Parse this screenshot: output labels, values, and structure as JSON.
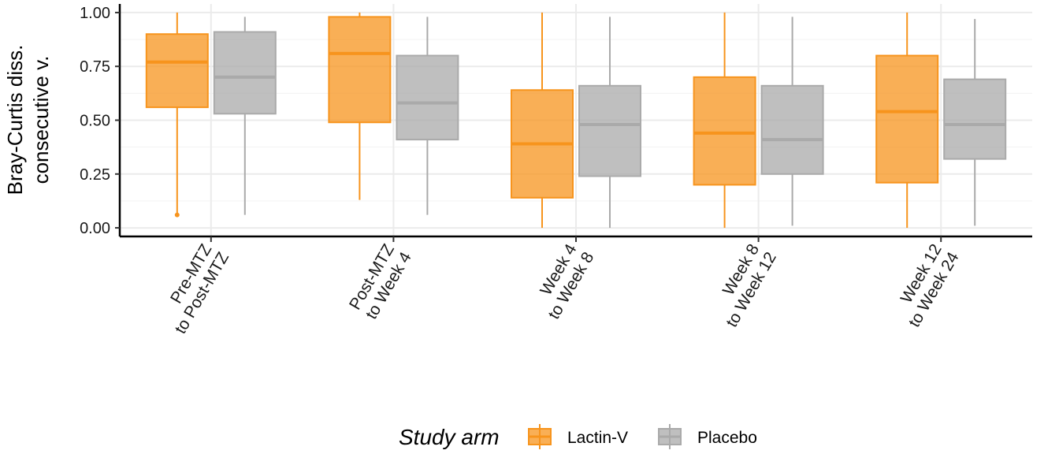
{
  "chart_data": {
    "type": "box",
    "ylabel_lines": [
      "Bray-Curtis diss.",
      "consecutive v."
    ],
    "xlabel": "",
    "ylim": [
      -0.04,
      1.04
    ],
    "y_ticks": [
      "0.00",
      "0.25",
      "0.50",
      "0.75",
      "1.00"
    ],
    "categories": [
      [
        "Pre-MTZ",
        "to Post-MTZ"
      ],
      [
        "Post-MTZ",
        "to Week 4"
      ],
      [
        "Week 4",
        "to Week 8"
      ],
      [
        "Week 8",
        "to Week 12"
      ],
      [
        "Week 12",
        "to Week 24"
      ]
    ],
    "grid": true,
    "legend": {
      "title": "Study arm",
      "position": "bottom"
    },
    "series": [
      {
        "name": "Lactin-V",
        "color": "#F7941D",
        "boxes": [
          {
            "min": 0.07,
            "q1": 0.56,
            "median": 0.77,
            "q3": 0.9,
            "max": 1.0,
            "outliers": [
              0.06
            ]
          },
          {
            "min": 0.13,
            "q1": 0.49,
            "median": 0.81,
            "q3": 0.98,
            "max": 1.0,
            "outliers": []
          },
          {
            "min": 0.0,
            "q1": 0.14,
            "median": 0.39,
            "q3": 0.64,
            "max": 1.0,
            "outliers": []
          },
          {
            "min": 0.0,
            "q1": 0.2,
            "median": 0.44,
            "q3": 0.7,
            "max": 1.0,
            "outliers": []
          },
          {
            "min": 0.0,
            "q1": 0.21,
            "median": 0.54,
            "q3": 0.8,
            "max": 1.0,
            "outliers": []
          }
        ]
      },
      {
        "name": "Placebo",
        "color": "#AAAAAA",
        "boxes": [
          {
            "min": 0.06,
            "q1": 0.53,
            "median": 0.7,
            "q3": 0.91,
            "max": 0.98,
            "outliers": []
          },
          {
            "min": 0.06,
            "q1": 0.41,
            "median": 0.58,
            "q3": 0.8,
            "max": 0.98,
            "outliers": []
          },
          {
            "min": 0.0,
            "q1": 0.24,
            "median": 0.48,
            "q3": 0.66,
            "max": 0.98,
            "outliers": []
          },
          {
            "min": 0.01,
            "q1": 0.25,
            "median": 0.41,
            "q3": 0.66,
            "max": 0.98,
            "outliers": []
          },
          {
            "min": 0.01,
            "q1": 0.32,
            "median": 0.48,
            "q3": 0.69,
            "max": 0.97,
            "outliers": []
          }
        ]
      }
    ]
  }
}
